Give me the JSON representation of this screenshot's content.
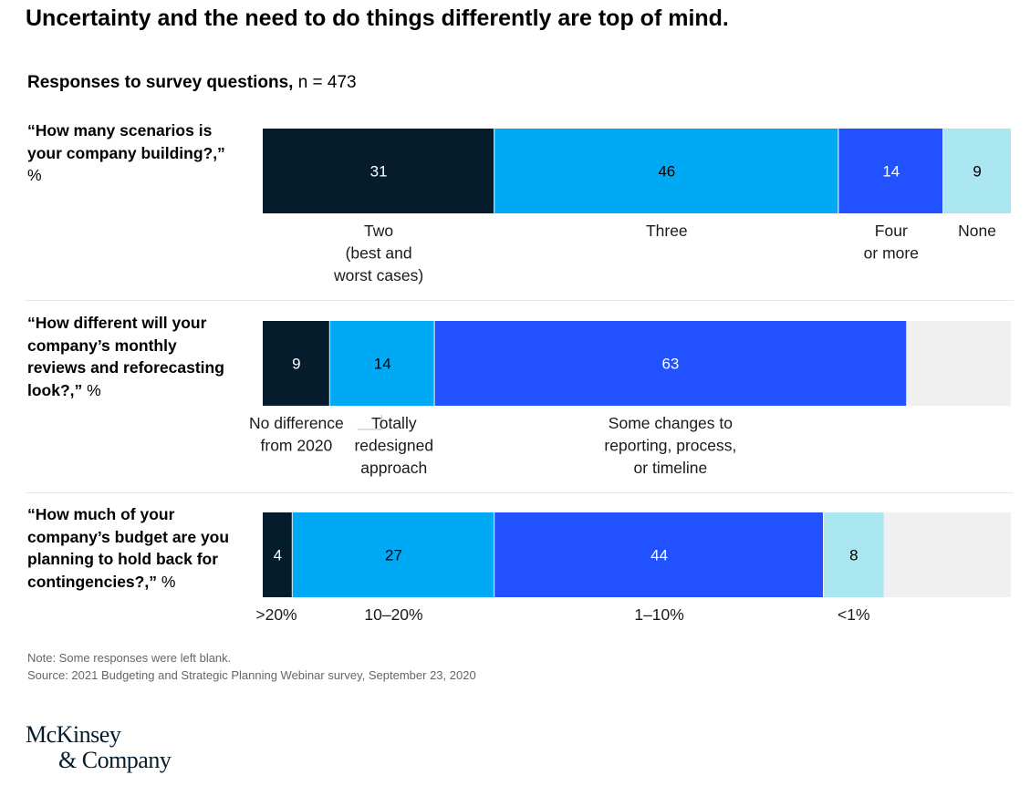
{
  "title": "Uncertainty and the need to do things differently are top of mind.",
  "subtitle": {
    "bold": "Responses to survey questions,",
    "rest": " n = 473"
  },
  "colors": {
    "navy": "#051c2c",
    "cyan": "#00a9f4",
    "blue": "#2251ff",
    "light_cyan": "#aae6f0",
    "gray": "#f0f0f0"
  },
  "chart_data": {
    "type": "bar",
    "orientation": "horizontal-stacked",
    "unit": "%",
    "xlim": [
      0,
      100
    ],
    "questions": [
      {
        "question": "“How many scenarios is your company building?,”",
        "unit_label": "%",
        "segments": [
          {
            "label": "Two (best and worst cases)",
            "label_lines": [
              "Two",
              "(best and",
              "worst cases)"
            ],
            "value": 31,
            "color": "#051c2c"
          },
          {
            "label": "Three",
            "label_lines": [
              "Three"
            ],
            "value": 46,
            "color": "#00a9f4"
          },
          {
            "label": "Four or more",
            "label_lines": [
              "Four",
              "or more"
            ],
            "value": 14,
            "color": "#2251ff"
          },
          {
            "label": "None",
            "label_lines": [
              "None"
            ],
            "value": 9,
            "color": "#aae6f0"
          }
        ]
      },
      {
        "question": "“How different will your company’s monthly reviews and reforecasting look?,”",
        "unit_label": "%",
        "segments": [
          {
            "label": "No difference from 2020",
            "label_lines": [
              "No difference",
              "from 2020"
            ],
            "value": 9,
            "color": "#051c2c"
          },
          {
            "label": "Totally redesigned approach",
            "label_lines": [
              "Totally",
              "redesigned",
              "approach"
            ],
            "value": 14,
            "color": "#00a9f4"
          },
          {
            "label": "Some changes to reporting, process, or timeline",
            "label_lines": [
              "Some changes to",
              "reporting, process,",
              "or timeline"
            ],
            "value": 63,
            "color": "#2251ff"
          }
        ]
      },
      {
        "question": "“How much of your company’s budget are you planning to hold back for contingencies?,”",
        "unit_label": "%",
        "segments": [
          {
            "label": ">20%",
            "label_lines": [
              ">20%"
            ],
            "value": 4,
            "color": "#051c2c"
          },
          {
            "label": "10–20%",
            "label_lines": [
              "10–20%"
            ],
            "value": 27,
            "color": "#00a9f4"
          },
          {
            "label": "1–10%",
            "label_lines": [
              "1–10%"
            ],
            "value": 44,
            "color": "#2251ff"
          },
          {
            "label": "<1%",
            "label_lines": [
              "<1%"
            ],
            "value": 8,
            "color": "#aae6f0"
          }
        ]
      }
    ]
  },
  "note": "Note: Some responses were left blank.",
  "source": "Source: 2021 Budgeting and Strategic Planning Webinar survey, September 23, 2020",
  "logo": {
    "line1": "McKinsey",
    "line2": "& Company"
  }
}
